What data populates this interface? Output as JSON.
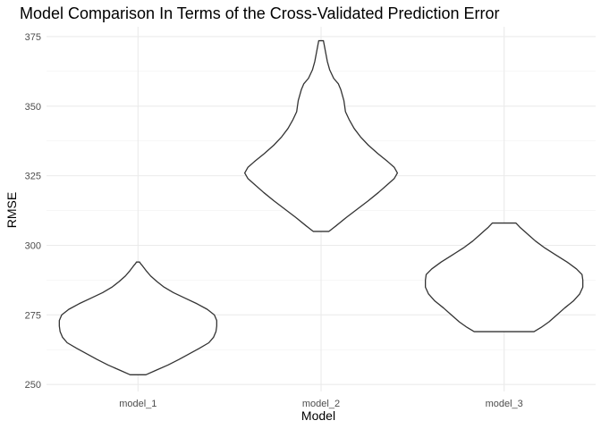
{
  "chart_data": {
    "type": "violin",
    "title": "Model Comparison In Terms of the Cross-Validated Prediction Error",
    "xlabel": "Model",
    "ylabel": "RMSE",
    "categories": [
      "model_1",
      "model_2",
      "model_3"
    ],
    "yticks": [
      250,
      275,
      300,
      325,
      350,
      375
    ],
    "ylim": [
      247.5,
      378.5
    ],
    "grid": true,
    "series": [
      {
        "category": "model_1",
        "min": 253.5,
        "max": 294,
        "profile": [
          [
            253.5,
            0.1
          ],
          [
            255,
            0.22
          ],
          [
            257,
            0.38
          ],
          [
            259,
            0.52
          ],
          [
            261,
            0.65
          ],
          [
            263,
            0.78
          ],
          [
            265,
            0.9
          ],
          [
            267,
            0.96
          ],
          [
            269,
            0.99
          ],
          [
            271,
            1.0
          ],
          [
            273,
            1.0
          ],
          [
            275,
            0.97
          ],
          [
            277,
            0.88
          ],
          [
            279,
            0.75
          ],
          [
            281,
            0.6
          ],
          [
            283,
            0.45
          ],
          [
            285,
            0.33
          ],
          [
            287,
            0.24
          ],
          [
            289,
            0.16
          ],
          [
            291,
            0.1
          ],
          [
            292.5,
            0.06
          ],
          [
            293.5,
            0.03
          ],
          [
            294,
            0.02
          ]
        ]
      },
      {
        "category": "model_2",
        "min": 305,
        "max": 373.5,
        "profile": [
          [
            305,
            0.1
          ],
          [
            307,
            0.19
          ],
          [
            310,
            0.32
          ],
          [
            313,
            0.46
          ],
          [
            316,
            0.6
          ],
          [
            319,
            0.73
          ],
          [
            322,
            0.85
          ],
          [
            324,
            0.93
          ],
          [
            326,
            0.97
          ],
          [
            328,
            0.93
          ],
          [
            330,
            0.85
          ],
          [
            333,
            0.72
          ],
          [
            336,
            0.6
          ],
          [
            339,
            0.5
          ],
          [
            342,
            0.42
          ],
          [
            345,
            0.36
          ],
          [
            348,
            0.31
          ],
          [
            350,
            0.3
          ],
          [
            352,
            0.29
          ],
          [
            354,
            0.27
          ],
          [
            356,
            0.25
          ],
          [
            358,
            0.22
          ],
          [
            360,
            0.16
          ],
          [
            363,
            0.11
          ],
          [
            366,
            0.08
          ],
          [
            369,
            0.06
          ],
          [
            372,
            0.04
          ],
          [
            373.5,
            0.03
          ]
        ]
      },
      {
        "category": "model_3",
        "min": 269,
        "max": 308,
        "profile": [
          [
            269,
            0.38
          ],
          [
            270.5,
            0.47
          ],
          [
            272.5,
            0.57
          ],
          [
            275,
            0.67
          ],
          [
            277.5,
            0.77
          ],
          [
            280,
            0.88
          ],
          [
            282.5,
            0.96
          ],
          [
            285,
            1.0
          ],
          [
            287.5,
            1.0
          ],
          [
            289.5,
            0.99
          ],
          [
            291.5,
            0.92
          ],
          [
            294,
            0.8
          ],
          [
            296.5,
            0.66
          ],
          [
            299,
            0.52
          ],
          [
            301.5,
            0.4
          ],
          [
            303.5,
            0.32
          ],
          [
            305,
            0.26
          ],
          [
            306.5,
            0.2
          ],
          [
            308,
            0.15
          ]
        ]
      }
    ]
  }
}
